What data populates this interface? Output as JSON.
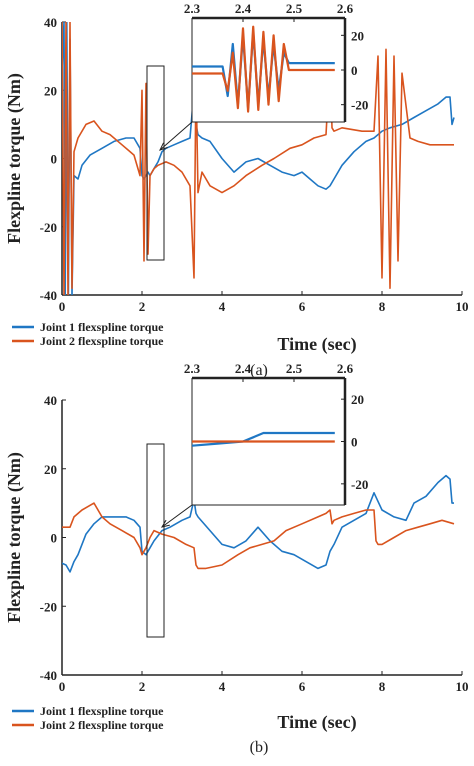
{
  "chart_data": [
    {
      "type": "line",
      "caption": "(a)",
      "xlabel": "Time (sec)",
      "ylabel": "Flexpline torque (Nm)",
      "xlim": [
        0,
        10
      ],
      "ylim": [
        -40,
        40
      ],
      "xticks": [
        "0",
        "2",
        "4",
        "6",
        "8",
        "10"
      ],
      "yticks": [
        "40",
        "20",
        "0",
        "-20",
        "-40"
      ],
      "legend_position": "bottom-left",
      "series": [
        {
          "name": "Joint 1 flexspline torque",
          "color": "#1f77c4",
          "x": [
            -0.1,
            0.05,
            0.08,
            0.12,
            0.16,
            0.2,
            0.25,
            0.3,
            0.4,
            0.5,
            0.7,
            1.0,
            1.3,
            1.6,
            1.8,
            1.95,
            2.0,
            2.05,
            2.1,
            2.15,
            2.2,
            2.3,
            2.4,
            2.5,
            2.6,
            2.8,
            3.0,
            3.2,
            3.3,
            3.35,
            3.4,
            3.5,
            3.7,
            4.0,
            4.3,
            4.6,
            4.9,
            5.2,
            5.5,
            5.8,
            6.0,
            6.2,
            6.4,
            6.6,
            6.7,
            6.8,
            7.0,
            7.3,
            7.6,
            7.8,
            8.0,
            8.2,
            8.5,
            8.8,
            9.1,
            9.4,
            9.6,
            9.7,
            9.75,
            9.8
          ],
          "y": [
            -3,
            40,
            -40,
            40,
            -40,
            35,
            -40,
            -5,
            -6,
            -2,
            1,
            3,
            5,
            6,
            6,
            3,
            -5,
            -6,
            -5,
            -4,
            -5,
            -3,
            -1,
            2,
            3,
            4,
            5,
            6,
            20,
            10,
            7,
            6,
            5,
            0,
            -4,
            -1,
            0,
            -2,
            -4,
            -5,
            -4,
            -6,
            -8,
            -9,
            -8,
            -6,
            -2,
            2,
            5,
            6,
            8,
            9,
            10,
            12,
            14,
            16,
            18,
            18,
            10,
            12
          ]
        },
        {
          "name": "Joint 2 flexspline torque",
          "color": "#d9541e",
          "x": [
            -0.1,
            0.0,
            0.05,
            0.1,
            0.15,
            0.2,
            0.25,
            0.3,
            0.4,
            0.6,
            0.8,
            1.0,
            1.2,
            1.5,
            1.8,
            1.95,
            2.0,
            2.05,
            2.1,
            2.15,
            2.2,
            2.3,
            2.4,
            2.6,
            2.8,
            3.0,
            3.2,
            3.3,
            3.35,
            3.4,
            3.5,
            3.7,
            4.0,
            4.3,
            4.6,
            5.0,
            5.3,
            5.7,
            6.0,
            6.3,
            6.6,
            6.7,
            6.75,
            6.8,
            7.0,
            7.5,
            7.8,
            7.9,
            8.0,
            8.1,
            8.2,
            8.3,
            8.4,
            8.5,
            8.7,
            8.9,
            9.2,
            9.5,
            9.8
          ],
          "y": [
            3,
            40,
            -40,
            40,
            -40,
            40,
            -38,
            2,
            6,
            10,
            11,
            8,
            7,
            4,
            1,
            -5,
            20,
            -30,
            22,
            -28,
            -5,
            -3,
            -2,
            -1,
            -2,
            -4,
            -8,
            -35,
            24,
            -10,
            -4,
            -8,
            -10,
            -8,
            -5,
            -2,
            0,
            3,
            4,
            6,
            7,
            28,
            9,
            8,
            9,
            8,
            8,
            30,
            -35,
            32,
            -38,
            30,
            -30,
            25,
            6,
            5,
            4,
            4,
            4
          ]
        }
      ],
      "inset": {
        "xlim": [
          2.3,
          2.6
        ],
        "ylim": [
          -30,
          30
        ],
        "xticks": [
          "2.3",
          "2.4",
          "2.5",
          "2.6"
        ],
        "yticks": [
          "20",
          "0",
          "-20"
        ],
        "series": [
          {
            "name": "Joint 1 flexspline torque",
            "x": [
              2.3,
              2.34,
              2.36,
              2.37,
              2.38,
              2.39,
              2.4,
              2.41,
              2.42,
              2.43,
              2.44,
              2.45,
              2.46,
              2.47,
              2.48,
              2.49,
              2.5,
              2.52,
              2.55,
              2.58
            ],
            "y": [
              2,
              2,
              2,
              -15,
              15,
              -20,
              20,
              -22,
              22,
              -20,
              18,
              -16,
              15,
              -12,
              10,
              4,
              4,
              4,
              4,
              4
            ],
            "color": "#1f77c4"
          },
          {
            "name": "Joint 2 flexspline torque",
            "x": [
              2.3,
              2.34,
              2.36,
              2.37,
              2.38,
              2.39,
              2.4,
              2.41,
              2.42,
              2.43,
              2.44,
              2.45,
              2.46,
              2.47,
              2.48,
              2.49,
              2.5,
              2.52,
              2.55,
              2.58
            ],
            "y": [
              -2,
              -2,
              -2,
              -12,
              10,
              -22,
              24,
              -24,
              25,
              -23,
              22,
              -20,
              20,
              -18,
              15,
              0,
              0,
              0,
              0,
              0
            ],
            "color": "#d9541e"
          }
        ]
      }
    },
    {
      "type": "line",
      "caption": "(b)",
      "xlabel": "Time (sec)",
      "ylabel": "Flexpline torque (Nm)",
      "xlim": [
        0,
        10
      ],
      "ylim": [
        -40,
        40
      ],
      "xticks": [
        "0",
        "2",
        "4",
        "6",
        "8",
        "10"
      ],
      "yticks": [
        "40",
        "20",
        "0",
        "-20",
        "-40"
      ],
      "legend_position": "bottom-left",
      "series": [
        {
          "name": "Joint 1 flexspline torque",
          "color": "#1f77c4",
          "x": [
            -0.1,
            0.1,
            0.2,
            0.3,
            0.4,
            0.6,
            0.8,
            1.0,
            1.3,
            1.6,
            1.8,
            1.95,
            2.0,
            2.1,
            2.2,
            2.3,
            2.5,
            2.7,
            3.0,
            3.2,
            3.3,
            3.35,
            3.4,
            3.7,
            4.0,
            4.3,
            4.6,
            4.9,
            5.2,
            5.5,
            5.8,
            6.1,
            6.4,
            6.6,
            6.7,
            6.8,
            7.0,
            7.3,
            7.6,
            7.8,
            8.0,
            8.3,
            8.6,
            8.8,
            9.1,
            9.4,
            9.6,
            9.7,
            9.75,
            9.8
          ],
          "y": [
            -7,
            -8,
            -10,
            -7,
            -5,
            1,
            4,
            6,
            6,
            6,
            5,
            3,
            -4,
            -5,
            -3,
            -1,
            2,
            3,
            5,
            6,
            11,
            7,
            6,
            2,
            -2,
            -3,
            -1,
            3,
            -1,
            -4,
            -5,
            -7,
            -9,
            -8,
            -4,
            -2,
            3,
            5,
            7,
            13,
            8,
            6,
            5,
            10,
            12,
            16,
            18,
            17,
            10,
            10
          ]
        },
        {
          "name": "Joint 2 flexspline torque",
          "color": "#d9541e",
          "x": [
            -0.1,
            0.2,
            0.3,
            0.5,
            0.8,
            1.0,
            1.2,
            1.5,
            1.8,
            1.95,
            2.0,
            2.1,
            2.2,
            2.3,
            2.5,
            2.8,
            3.1,
            3.3,
            3.35,
            3.4,
            3.6,
            4.0,
            4.4,
            4.7,
            5.0,
            5.3,
            5.6,
            6.0,
            6.4,
            6.6,
            6.7,
            6.75,
            6.8,
            7.0,
            7.3,
            7.6,
            7.8,
            7.85,
            7.9,
            8.0,
            8.3,
            8.6,
            8.9,
            9.2,
            9.5,
            9.8
          ],
          "y": [
            3,
            3,
            6,
            8,
            10,
            6,
            4,
            2,
            0,
            -3,
            -5,
            -3,
            0,
            2,
            1,
            0,
            -2,
            -3,
            -8,
            -9,
            -9,
            -8,
            -5,
            -3,
            -2,
            -1,
            2,
            4,
            6,
            7,
            8,
            4,
            5,
            6,
            7,
            8,
            8,
            -1,
            -2,
            -2,
            0,
            2,
            3,
            4,
            5,
            4
          ]
        }
      ],
      "inset": {
        "xlim": [
          2.3,
          2.6
        ],
        "ylim": [
          -30,
          30
        ],
        "xticks": [
          "2.3",
          "2.4",
          "2.5",
          "2.6"
        ],
        "yticks": [
          "20",
          "0",
          "-20"
        ],
        "series": [
          {
            "name": "Joint 1 flexspline torque",
            "x": [
              2.3,
              2.35,
              2.4,
              2.42,
              2.44,
              2.46,
              2.5,
              2.55,
              2.58
            ],
            "y": [
              -2,
              -1,
              0,
              2,
              4,
              4,
              4,
              4,
              4
            ],
            "color": "#1f77c4"
          },
          {
            "name": "Joint 2 flexspline torque",
            "x": [
              2.3,
              2.35,
              2.4,
              2.45,
              2.5,
              2.55,
              2.58
            ],
            "y": [
              0,
              0,
              0,
              0,
              0,
              0,
              0
            ],
            "color": "#d9541e"
          }
        ]
      }
    }
  ]
}
